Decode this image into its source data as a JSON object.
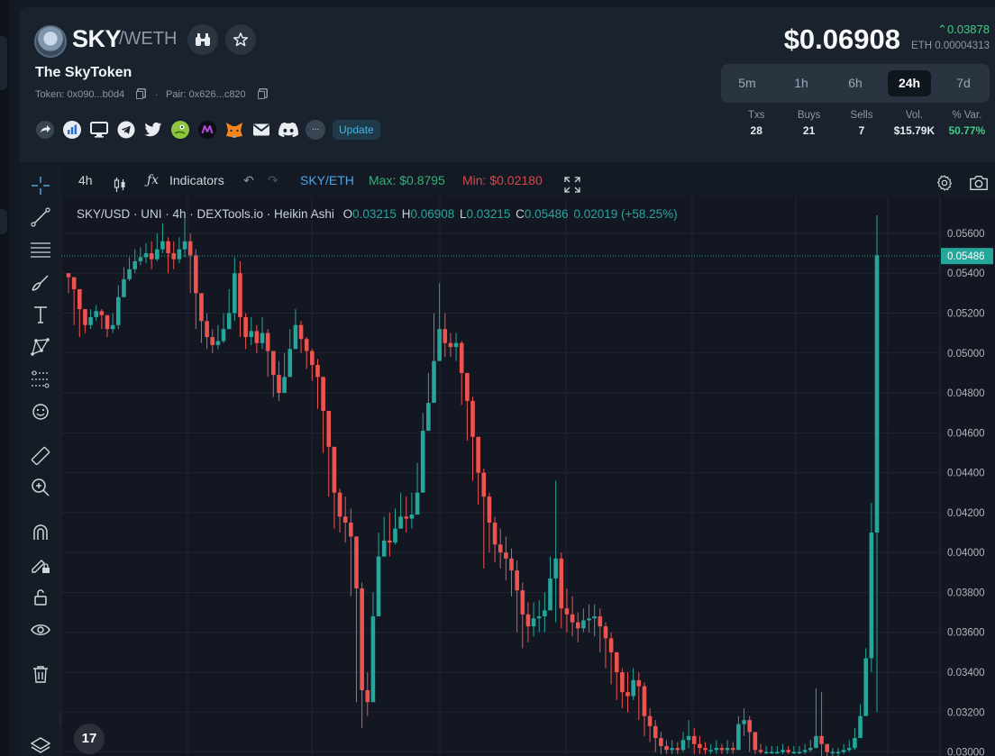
{
  "token": {
    "symbol": "SKY",
    "pair_quote": "/WETH",
    "name": "The SkyToken",
    "token_address": "Token: 0x090...b0d4",
    "pair_address": "Pair: 0x626...c820",
    "separator": "·"
  },
  "price": {
    "usd": "$0.06908",
    "change": "0.03878",
    "eth": "ETH 0.00004313",
    "change_color": "#3fcf86"
  },
  "header_buttons": {
    "compare_icon": "binoculars-icon",
    "favorite_icon": "star-icon"
  },
  "links": {
    "icons": [
      "share-icon",
      "chart-link-icon",
      "website-icon",
      "telegram-icon",
      "twitter-icon",
      "coingecko-icon",
      "aggregator-icon",
      "metamask-icon",
      "email-icon",
      "discord-icon"
    ],
    "more_label": "...",
    "update_label": "Update"
  },
  "timeframes": [
    {
      "label": "5m",
      "active": false
    },
    {
      "label": "1h",
      "active": false
    },
    {
      "label": "6h",
      "active": false
    },
    {
      "label": "24h",
      "active": true
    },
    {
      "label": "7d",
      "active": false
    }
  ],
  "stats": [
    {
      "label": "Txs",
      "value": "28"
    },
    {
      "label": "Buys",
      "value": "21"
    },
    {
      "label": "Sells",
      "value": "7"
    },
    {
      "label": "Vol.",
      "value": "$15.79K"
    },
    {
      "label": "% Var.",
      "value": "50.77%"
    }
  ],
  "toolbar": {
    "interval": "4h",
    "indicators_label": "Indicators",
    "pair": "SKY/ETH",
    "max_label": "Max: $0.8795",
    "min_label": "Min: $0.02180"
  },
  "left_tools": [
    "crosshair-icon",
    "trend-line-icon",
    "fib-icon",
    "brush-icon",
    "text-icon",
    "pattern-icon",
    "prediction-icon",
    "emoji-icon",
    "ruler-icon",
    "zoom-in-icon",
    "magnet-icon",
    "lock-drawing-icon",
    "unlock-icon",
    "eye-icon",
    "trash-icon",
    "layers-icon"
  ],
  "legend": {
    "title": "SKY/USD · UNI · 4h · DEXTools.io · Heikin Ashi",
    "o_label": "O",
    "o": "0.03215",
    "h_label": "H",
    "h": "0.06908",
    "l_label": "L",
    "l": "0.03215",
    "c_label": "C",
    "c": "0.05486",
    "change": "0.02019 (+58.25%)"
  },
  "tv_logo": "17",
  "chart_data": {
    "type": "candlestick",
    "style": "Heikin Ashi",
    "up_color": "#26a69a",
    "down_color": "#ef5350",
    "y_axis_ticks": [
      "0.05600",
      "0.05400",
      "0.05200",
      "0.05000",
      "0.04800",
      "0.04600",
      "0.04400",
      "0.04200",
      "0.04000",
      "0.03800",
      "0.03600",
      "0.03400",
      "0.03200",
      "0.03000"
    ],
    "ylim": [
      0.0298,
      0.0569
    ],
    "last_price_label": "0.05486",
    "last_price": 0.05486,
    "series_close": [
      0.0538,
      0.0532,
      0.0522,
      0.0514,
      0.0518,
      0.0521,
      0.0519,
      0.0512,
      0.0514,
      0.0528,
      0.0537,
      0.0542,
      0.0546,
      0.0548,
      0.055,
      0.0547,
      0.0552,
      0.0556,
      0.055,
      0.0547,
      0.0552,
      0.0556,
      0.0549,
      0.053,
      0.0516,
      0.0508,
      0.0504,
      0.0506,
      0.0512,
      0.052,
      0.054,
      0.0518,
      0.0508,
      0.0511,
      0.0505,
      0.051,
      0.0501,
      0.0489,
      0.048,
      0.0488,
      0.0502,
      0.0514,
      0.0507,
      0.0501,
      0.0494,
      0.0488,
      0.0471,
      0.0453,
      0.043,
      0.0418,
      0.0415,
      0.0408,
      0.0382,
      0.0331,
      0.0325,
      0.0368,
      0.0398,
      0.0406,
      0.0405,
      0.0412,
      0.0418,
      0.0417,
      0.0419,
      0.043,
      0.0461,
      0.0475,
      0.0496,
      0.0512,
      0.0505,
      0.0503,
      0.0505,
      0.049,
      0.0476,
      0.0458,
      0.044,
      0.0428,
      0.0415,
      0.0404,
      0.04,
      0.0397,
      0.0391,
      0.0381,
      0.0369,
      0.0363,
      0.0367,
      0.0368,
      0.0371,
      0.0387,
      0.0397,
      0.0372,
      0.0369,
      0.0365,
      0.0362,
      0.0366,
      0.0367,
      0.0368,
      0.0363,
      0.0357,
      0.035,
      0.034,
      0.033,
      0.0328,
      0.0336,
      0.0333,
      0.0318,
      0.0313,
      0.0307,
      0.0303,
      0.0301,
      0.0302,
      0.0301,
      0.0306,
      0.0308,
      0.0304,
      0.0302,
      0.0301,
      0.0301,
      0.0302,
      0.0301,
      0.0302,
      0.0301,
      0.0314,
      0.0316,
      0.031,
      0.0301,
      0.03,
      0.03,
      0.03,
      0.03,
      0.0301,
      0.03,
      0.03,
      0.03,
      0.0301,
      0.0302,
      0.0308,
      0.0304,
      0.03,
      0.03,
      0.03,
      0.0301,
      0.0302,
      0.0307,
      0.0318,
      0.0347,
      0.041,
      0.0549
    ],
    "series_high": [
      0.054,
      0.0538,
      0.0528,
      0.0518,
      0.0522,
      0.0524,
      0.0522,
      0.0516,
      0.052,
      0.0534,
      0.0543,
      0.0548,
      0.0552,
      0.0553,
      0.0555,
      0.0556,
      0.056,
      0.0565,
      0.0558,
      0.0556,
      0.0558,
      0.0568,
      0.056,
      0.0552,
      0.053,
      0.052,
      0.0512,
      0.0514,
      0.052,
      0.0532,
      0.0548,
      0.0546,
      0.052,
      0.0518,
      0.0514,
      0.0518,
      0.0512,
      0.05,
      0.0496,
      0.05,
      0.0512,
      0.0522,
      0.0516,
      0.0508,
      0.0502,
      0.0497,
      0.0488,
      0.047,
      0.045,
      0.0432,
      0.0428,
      0.0422,
      0.0408,
      0.0385,
      0.034,
      0.038,
      0.041,
      0.0418,
      0.042,
      0.0422,
      0.043,
      0.0428,
      0.043,
      0.0445,
      0.047,
      0.049,
      0.052,
      0.0535,
      0.052,
      0.051,
      0.051,
      0.0506,
      0.049,
      0.0478,
      0.0456,
      0.0442,
      0.043,
      0.0418,
      0.0412,
      0.0408,
      0.0402,
      0.0396,
      0.0385,
      0.0375,
      0.0375,
      0.0376,
      0.038,
      0.0398,
      0.0436,
      0.04,
      0.0382,
      0.0378,
      0.037,
      0.0372,
      0.0374,
      0.0374,
      0.0372,
      0.0365,
      0.036,
      0.035,
      0.0342,
      0.034,
      0.0342,
      0.034,
      0.0335,
      0.0322,
      0.0316,
      0.031,
      0.0306,
      0.0306,
      0.0305,
      0.031,
      0.0316,
      0.0312,
      0.0308,
      0.0305,
      0.0304,
      0.0306,
      0.0304,
      0.0306,
      0.0305,
      0.0318,
      0.0322,
      0.0318,
      0.0307,
      0.0304,
      0.0303,
      0.0303,
      0.0303,
      0.0304,
      0.0303,
      0.0303,
      0.0303,
      0.0304,
      0.0306,
      0.0332,
      0.033,
      0.0303,
      0.0302,
      0.0302,
      0.0304,
      0.0306,
      0.0312,
      0.0324,
      0.0352,
      0.0425,
      0.0569
    ],
    "series_low": [
      0.053,
      0.0514,
      0.0508,
      0.051,
      0.0512,
      0.0516,
      0.0512,
      0.0508,
      0.051,
      0.0512,
      0.053,
      0.0536,
      0.054,
      0.0544,
      0.0545,
      0.0542,
      0.0546,
      0.055,
      0.054,
      0.0542,
      0.0545,
      0.0548,
      0.053,
      0.0512,
      0.0505,
      0.0502,
      0.05,
      0.0502,
      0.0505,
      0.0512,
      0.0516,
      0.0508,
      0.0502,
      0.0504,
      0.05,
      0.0502,
      0.0488,
      0.0478,
      0.0476,
      0.048,
      0.0492,
      0.0504,
      0.05,
      0.0492,
      0.0486,
      0.0472,
      0.045,
      0.0428,
      0.0412,
      0.041,
      0.0405,
      0.0378,
      0.0325,
      0.0312,
      0.0318,
      0.0325,
      0.0392,
      0.0398,
      0.0398,
      0.0404,
      0.0412,
      0.041,
      0.0412,
      0.0422,
      0.044,
      0.0462,
      0.0482,
      0.05,
      0.0498,
      0.0498,
      0.0496,
      0.0474,
      0.0456,
      0.0436,
      0.0424,
      0.0392,
      0.04,
      0.0395,
      0.0392,
      0.0386,
      0.0378,
      0.036,
      0.0352,
      0.0355,
      0.0358,
      0.036,
      0.036,
      0.0375,
      0.0365,
      0.0362,
      0.036,
      0.0358,
      0.0355,
      0.036,
      0.036,
      0.0358,
      0.035,
      0.0342,
      0.0334,
      0.0326,
      0.0322,
      0.032,
      0.0326,
      0.0316,
      0.0308,
      0.0305,
      0.03,
      0.0299,
      0.0299,
      0.0299,
      0.0299,
      0.03,
      0.0302,
      0.0299,
      0.0299,
      0.0299,
      0.0299,
      0.0299,
      0.0299,
      0.0299,
      0.0299,
      0.0304,
      0.0308,
      0.03,
      0.0299,
      0.0299,
      0.0299,
      0.0299,
      0.0299,
      0.0299,
      0.0299,
      0.0299,
      0.0299,
      0.0299,
      0.03,
      0.0302,
      0.0298,
      0.0298,
      0.0298,
      0.0298,
      0.0299,
      0.03,
      0.0301,
      0.031,
      0.0325,
      0.034,
      0.032
    ]
  }
}
